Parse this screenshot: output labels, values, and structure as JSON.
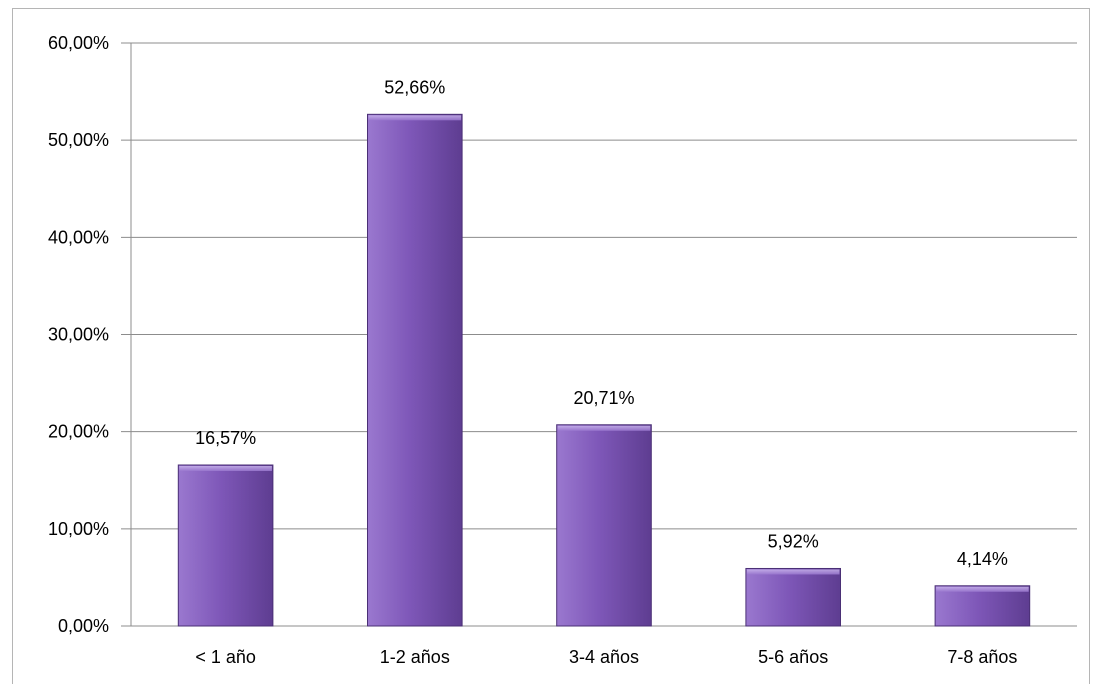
{
  "chart_data": {
    "type": "bar",
    "title": "",
    "xlabel": "",
    "ylabel": "",
    "categories": [
      "< 1 año",
      "1-2 años",
      "3-4 años",
      "5-6 años",
      "7-8 años"
    ],
    "values": [
      16.57,
      52.66,
      20.71,
      5.92,
      4.14
    ],
    "data_labels": [
      "16,57%",
      "52,66%",
      "20,71%",
      "5,92%",
      "4,14%"
    ],
    "ylim": [
      0,
      60
    ],
    "yticks": [
      0,
      10,
      20,
      30,
      40,
      50,
      60
    ],
    "ytick_labels": [
      "0,00%",
      "10,00%",
      "20,00%",
      "30,00%",
      "40,00%",
      "50,00%",
      "60,00%"
    ],
    "grid": true,
    "legend": "none",
    "colors": {
      "bar_light": "#9a78cf",
      "bar_mid": "#7e57b8",
      "bar_dark": "#5e3d91",
      "bar_edge": "#4a2f75",
      "grid": "#8c8c8c"
    }
  }
}
